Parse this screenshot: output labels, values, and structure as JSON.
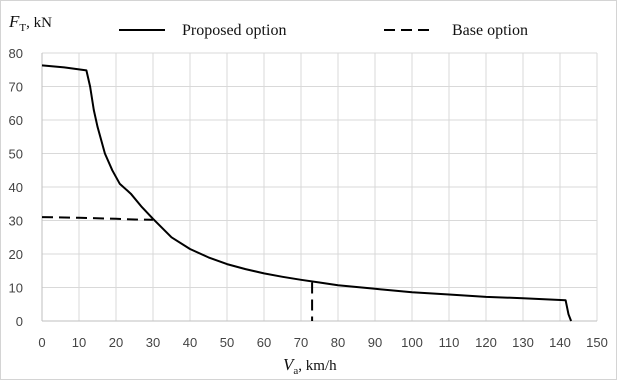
{
  "chart_data": {
    "type": "line",
    "ylabel": {
      "symbol": "F",
      "subscript": "T",
      "unit": ", kN"
    },
    "xlabel": {
      "symbol": "V",
      "subscript": "a",
      "unit": ", km/h"
    },
    "xlim": [
      0,
      150
    ],
    "ylim": [
      0,
      80
    ],
    "x_ticks": [
      0,
      10,
      20,
      30,
      40,
      50,
      60,
      70,
      80,
      90,
      100,
      110,
      120,
      130,
      140,
      150
    ],
    "y_ticks": [
      0,
      10,
      20,
      30,
      40,
      50,
      60,
      70,
      80
    ],
    "grid": true,
    "legend_position": "top",
    "series": [
      {
        "name": "Proposed option",
        "style": "solid",
        "points": [
          [
            0,
            76.3
          ],
          [
            6,
            75.7
          ],
          [
            12,
            74.8
          ],
          [
            13,
            70
          ],
          [
            14,
            63
          ],
          [
            15,
            58
          ],
          [
            17,
            50
          ],
          [
            19,
            45
          ],
          [
            21,
            41
          ],
          [
            24,
            38
          ],
          [
            27,
            34
          ],
          [
            30,
            30.5
          ],
          [
            35,
            25
          ],
          [
            40,
            21.5
          ],
          [
            45,
            19
          ],
          [
            50,
            17
          ],
          [
            55,
            15.5
          ],
          [
            60,
            14.2
          ],
          [
            65,
            13.2
          ],
          [
            70,
            12.3
          ],
          [
            75,
            11.5
          ],
          [
            80,
            10.7
          ],
          [
            90,
            9.6
          ],
          [
            100,
            8.6
          ],
          [
            110,
            7.9
          ],
          [
            120,
            7.2
          ],
          [
            130,
            6.8
          ],
          [
            141.5,
            6.2
          ],
          [
            142.3,
            2
          ],
          [
            143,
            0
          ]
        ]
      },
      {
        "name": "Base option",
        "style": "dashed",
        "points": [
          [
            0,
            31
          ],
          [
            10,
            30.8
          ],
          [
            20,
            30.5
          ],
          [
            25,
            30.3
          ],
          [
            29.5,
            30.2
          ],
          [
            30,
            30.2
          ]
        ],
        "extra_segment": [
          [
            73,
            11.5
          ],
          [
            73,
            0
          ]
        ]
      }
    ]
  }
}
